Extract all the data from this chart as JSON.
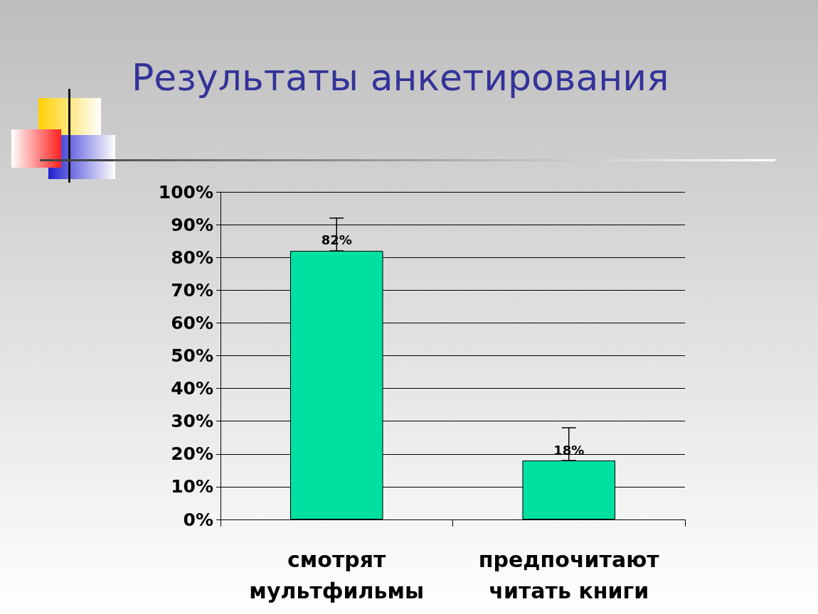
{
  "chart_data": {
    "type": "bar",
    "title": "Результаты анкетирования",
    "categories": [
      "смотрят\nмультфильмы",
      "предпочитают\nчитать книги"
    ],
    "values": [
      82,
      18
    ],
    "color": "#00e0a0",
    "value_labels": [
      "82%",
      "18%"
    ],
    "errors": [
      [
        82,
        92
      ],
      [
        18,
        28
      ]
    ],
    "ylim": [
      0,
      100
    ],
    "yticks": [
      {
        "value": 0,
        "label": "0%"
      },
      {
        "value": 10,
        "label": "10%"
      },
      {
        "value": 20,
        "label": "20%"
      },
      {
        "value": 30,
        "label": "30%"
      },
      {
        "value": 40,
        "label": "40%"
      },
      {
        "value": 50,
        "label": "50%"
      },
      {
        "value": 60,
        "label": "60%"
      },
      {
        "value": 70,
        "label": "70%"
      },
      {
        "value": 80,
        "label": "80%"
      },
      {
        "value": 90,
        "label": "90%"
      },
      {
        "value": 100,
        "label": "100%"
      }
    ],
    "grid": "y"
  }
}
